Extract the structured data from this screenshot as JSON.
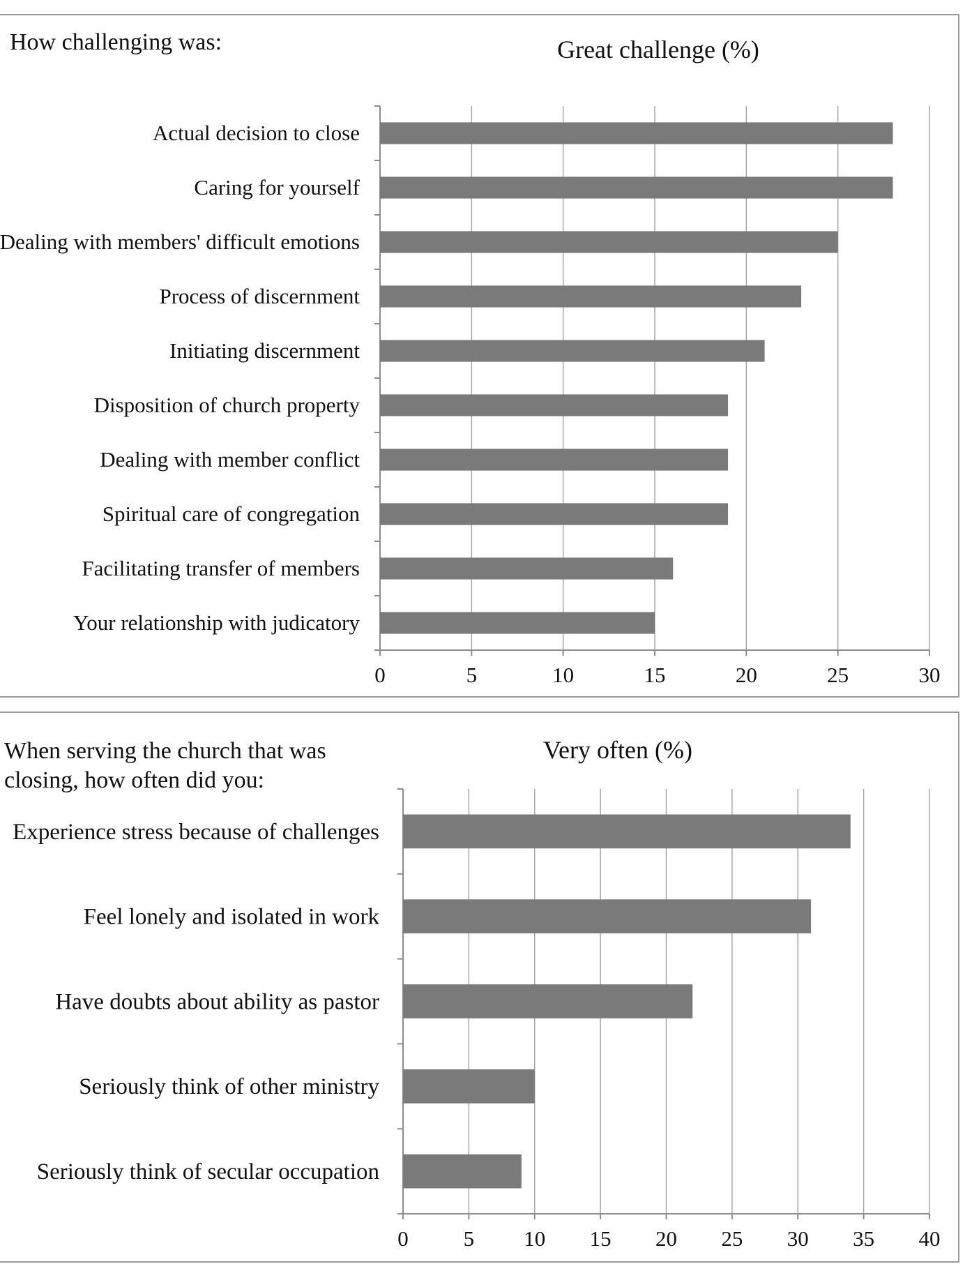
{
  "chart_data": [
    {
      "type": "bar",
      "orientation": "horizontal",
      "question": "How challenging was:",
      "title": "Great challenge (%)",
      "categories": [
        "Actual decision to close",
        "Caring for yourself",
        "Dealing with members' difficult emotions",
        "Process of discernment",
        "Initiating discernment",
        "Disposition of church property",
        "Dealing with member conflict",
        "Spiritual care of congregation",
        "Facilitating transfer of members",
        "Your relationship with judicatory"
      ],
      "values": [
        28,
        28,
        25,
        23,
        21,
        19,
        19,
        19,
        16,
        15
      ],
      "xlim": [
        0,
        30
      ],
      "ticks": [
        "0",
        "5",
        "10",
        "15",
        "20",
        "25",
        "30"
      ],
      "grid": true,
      "bar_color": "#7a7a7a"
    },
    {
      "type": "bar",
      "orientation": "horizontal",
      "question": "When serving the church that was\nclosing, how often did you:",
      "title": "Very often (%)",
      "categories": [
        "Experience stress because of challenges",
        "Feel lonely and isolated in work",
        "Have doubts about ability as pastor",
        "Seriously think of other ministry",
        "Seriously think of secular occupation"
      ],
      "values": [
        34,
        31,
        22,
        10,
        9
      ],
      "xlim": [
        0,
        40
      ],
      "ticks": [
        "0",
        "5",
        "10",
        "15",
        "20",
        "25",
        "30",
        "35",
        "40"
      ],
      "grid": true,
      "bar_color": "#7a7a7a"
    }
  ]
}
